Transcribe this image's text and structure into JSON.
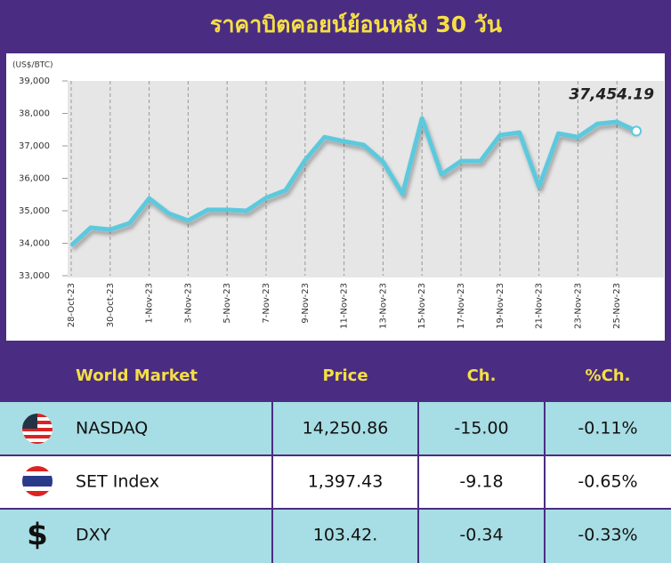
{
  "chart_data": {
    "type": "line",
    "title": "ราคาบิตคอยน์ย้อนหลัง 30 วัน",
    "y_label": "(US$/BTC)",
    "categories": [
      "28-Oct-23",
      null,
      "30-Oct-23",
      null,
      "1-Nov-23",
      null,
      "3-Nov-23",
      null,
      "5-Nov-23",
      null,
      "7-Nov-23",
      null,
      "9-Nov-23",
      null,
      "11-Nov-23",
      null,
      "13-Nov-23",
      null,
      "15-Nov-23",
      null,
      "17-Nov-23",
      null,
      "19-Nov-23",
      null,
      "21-Nov-23",
      null,
      "23-Nov-23",
      null,
      "25-Nov-23",
      null
    ],
    "series": [
      {
        "name": "BTC",
        "color": "#5cc9dd",
        "values": [
          33930,
          34480,
          34420,
          34620,
          35380,
          34920,
          34700,
          35030,
          35030,
          35000,
          35400,
          35630,
          36560,
          37270,
          37140,
          37030,
          36510,
          35520,
          37850,
          36120,
          36530,
          36530,
          37330,
          37410,
          35740,
          37380,
          37270,
          37680,
          37740,
          37454.19
        ],
        "value_labels": [
          null,
          null,
          null,
          null,
          null,
          null,
          null,
          null,
          null,
          null,
          null,
          null,
          null,
          null,
          null,
          null,
          null,
          null,
          null,
          null,
          null,
          null,
          null,
          null,
          null,
          null,
          null,
          null,
          null,
          "37,454.19"
        ]
      }
    ],
    "ylim": [
      33000,
      39000
    ],
    "yticks": [
      {
        "value": 33000,
        "label": "33,000"
      },
      {
        "value": 34000,
        "label": "34,000"
      },
      {
        "value": 35000,
        "label": "35,000"
      },
      {
        "value": 36000,
        "label": "36,000"
      },
      {
        "value": 37000,
        "label": "37,000"
      },
      {
        "value": 38000,
        "label": "38,000"
      },
      {
        "value": 39000,
        "label": "39,000"
      }
    ]
  },
  "table": {
    "header": [
      "World Market",
      "Price",
      "Ch.",
      "%Ch."
    ],
    "rows": [
      [
        "NASDAQ",
        "14,250.86",
        "-15.00",
        "-0.11%"
      ],
      [
        "SET Index",
        "1,397.43",
        "-9.18",
        "-0.65%"
      ],
      [
        "DXY",
        "103.42.",
        "-0.34",
        "-0.33%"
      ]
    ]
  }
}
